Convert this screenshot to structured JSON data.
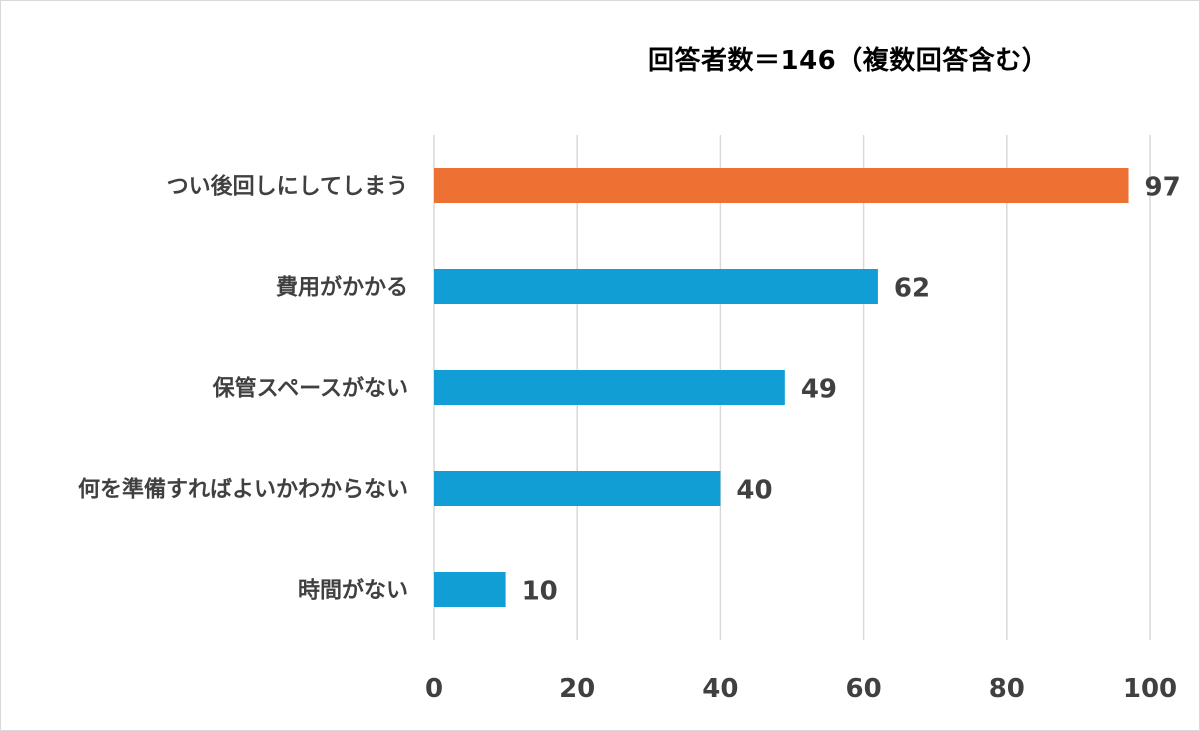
{
  "chart_data": {
    "type": "bar",
    "orientation": "horizontal",
    "title": "回答者数＝146（複数回答含む）",
    "categories": [
      "つい後回しにしてしまう",
      "費用がかかる",
      "保管スペースがない",
      "何を準備すればよいかわからない",
      "時間がない"
    ],
    "values": [
      97,
      62,
      49,
      40,
      10
    ],
    "colors": [
      "#ed7133",
      "#119ed4",
      "#119ed4",
      "#119ed4",
      "#119ed4"
    ],
    "xlim": [
      0,
      100
    ],
    "xticks": [
      "0",
      "20",
      "40",
      "60",
      "80",
      "100"
    ],
    "grid": true,
    "gridline_color": "#d9d9d9"
  }
}
